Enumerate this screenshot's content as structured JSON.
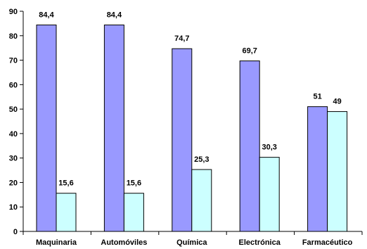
{
  "chart_data": {
    "type": "bar",
    "categories": [
      "Maquinaria",
      "Automóviles",
      "Química",
      "Electrónica",
      "Farmacéutico"
    ],
    "series": [
      {
        "values": [
          84.4,
          84.4,
          74.7,
          69.7,
          51
        ],
        "labels": [
          "84,4",
          "84,4",
          "74,7",
          "69,7",
          "51"
        ],
        "color": "#9999FF"
      },
      {
        "values": [
          15.6,
          15.6,
          25.3,
          30.3,
          49
        ],
        "labels": [
          "15,6",
          "15,6",
          "25,3",
          "30,3",
          "49"
        ],
        "color": "#CCFFFF"
      }
    ],
    "ylim": [
      0,
      90
    ],
    "yticks": [
      0,
      10,
      20,
      30,
      40,
      50,
      60,
      70,
      80,
      90
    ],
    "ytick_labels": [
      "0",
      "10",
      "20",
      "30",
      "40",
      "50",
      "60",
      "70",
      "80",
      "90"
    ],
    "grid": false,
    "legend": "none",
    "bar_stroke_color": "#000000",
    "axis_color": "#000000"
  }
}
